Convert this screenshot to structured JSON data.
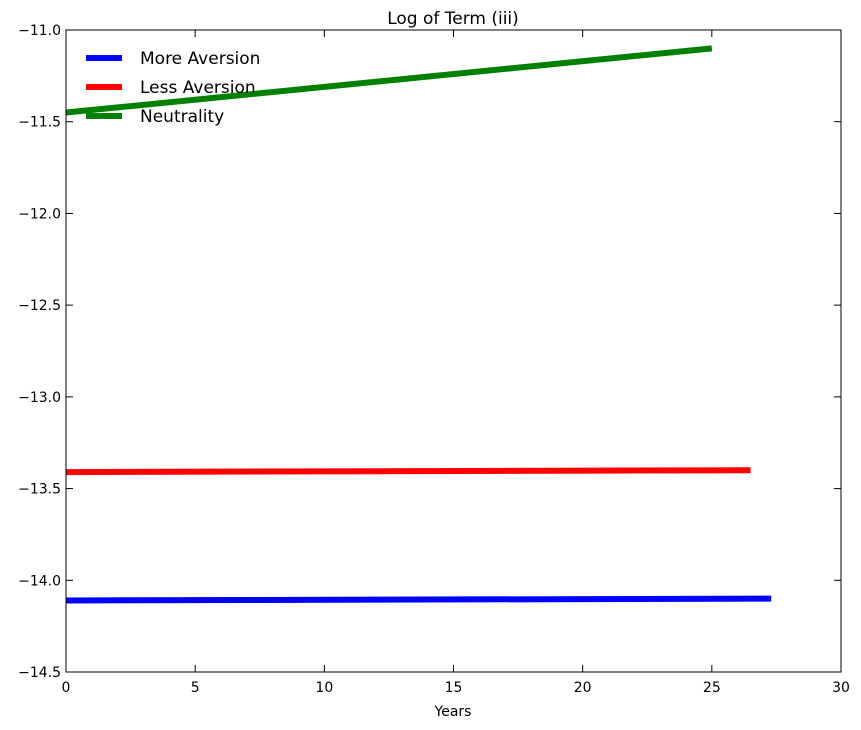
{
  "chart_data": {
    "type": "line",
    "title": "Log of Term (iii)",
    "xlabel": "Years",
    "ylabel": "",
    "xlim": [
      0,
      30
    ],
    "ylim": [
      -14.5,
      -11.0
    ],
    "xticks": [
      0,
      5,
      10,
      15,
      20,
      25,
      30
    ],
    "yticks": [
      -11.0,
      -11.5,
      -12.0,
      -12.5,
      -13.0,
      -13.5,
      -14.0,
      -14.5
    ],
    "xtick_labels": [
      "0",
      "5",
      "10",
      "15",
      "20",
      "25",
      "30"
    ],
    "ytick_labels": [
      "−11.0",
      "−11.5",
      "−12.0",
      "−12.5",
      "−13.0",
      "−13.5",
      "−14.0",
      "−14.5"
    ],
    "grid": false,
    "legend_position": "top-left",
    "series": [
      {
        "name": "More Aversion",
        "color": "#0000ff",
        "x": [
          0,
          27.3
        ],
        "y": [
          -14.11,
          -14.1
        ]
      },
      {
        "name": "Less Aversion",
        "color": "#ff0000",
        "x": [
          0,
          26.5
        ],
        "y": [
          -13.41,
          -13.4
        ]
      },
      {
        "name": "Neutrality",
        "color": "#008000",
        "x": [
          0,
          25
        ],
        "y": [
          -11.45,
          -11.1
        ]
      }
    ]
  }
}
